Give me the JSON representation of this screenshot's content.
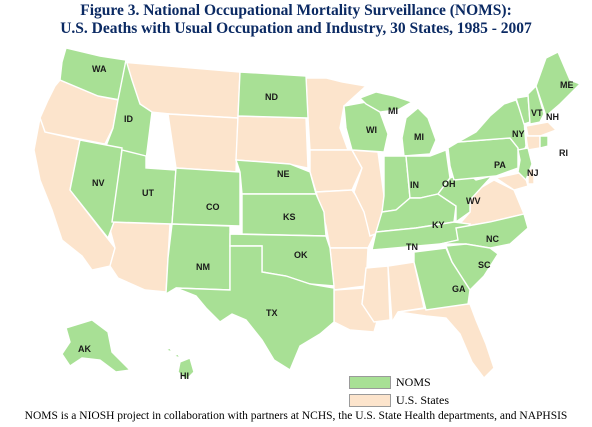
{
  "title": {
    "line1": "Figure 3. National Occupational Mortality Surveillance (NOMS):",
    "line2": "U.S. Deaths with Usual Occupation and Industry, 30 States, 1985 - 2007"
  },
  "colors": {
    "noms": "#a8e095",
    "us_states": "#fce4cc",
    "title": "#0b2a63",
    "border": "#ffffff"
  },
  "legend": {
    "noms_label": "NOMS",
    "us_label": "U.S. States"
  },
  "state_labels": {
    "WA": "WA",
    "ID": "ID",
    "NV": "NV",
    "UT": "UT",
    "CO": "CO",
    "NM": "NM",
    "ND": "ND",
    "NE": "NE",
    "KS": "KS",
    "OK": "OK",
    "TX": "TX",
    "WI": "WI",
    "MI_UP": "MI",
    "MI": "MI",
    "IN": "IN",
    "OH": "OH",
    "KY": "KY",
    "WV": "WV",
    "TN": "TN",
    "NC": "NC",
    "SC": "SC",
    "GA": "GA",
    "PA": "PA",
    "NY": "NY",
    "VT": "VT",
    "NH": "NH",
    "ME": "ME",
    "NJ": "NJ",
    "RI": "RI",
    "AK": "AK",
    "HI": "HI"
  },
  "footnote": "NOMS is a NIOSH project in collaboration with partners at NCHS, the U.S. State Health departments, and NAPHSIS"
}
